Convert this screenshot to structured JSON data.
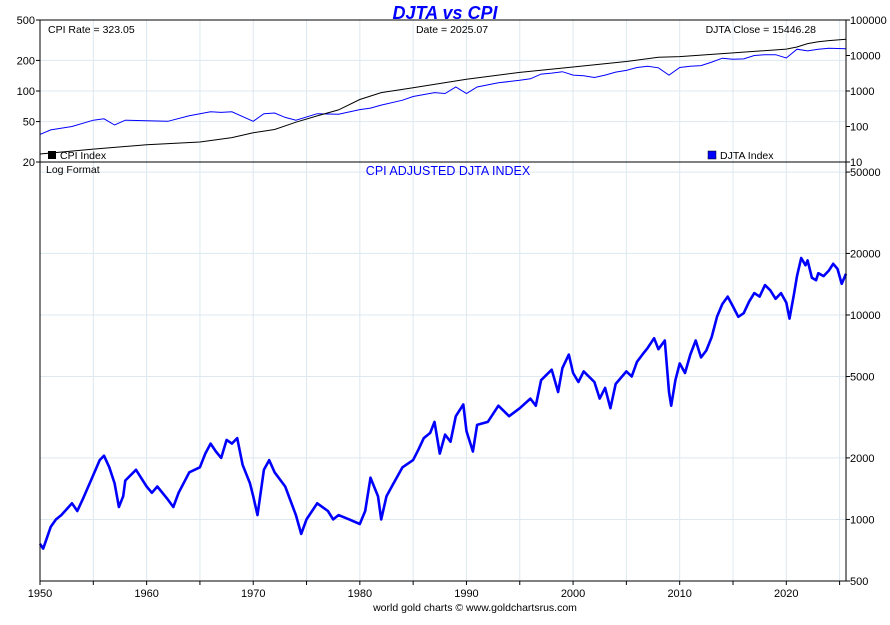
{
  "colors": {
    "accent": "#0000ff",
    "grid": "#dde8f0",
    "cpi_line": "#000000",
    "djta_line": "#0000ff",
    "frame": "#000000"
  },
  "chart_data": [
    {
      "panel": "top",
      "type": "line",
      "title": "DJTA vs CPI",
      "header_left": "CPI Rate = 323.05",
      "header_center": "Date = 2025.07",
      "header_right": "DJTA Close = 15446.28",
      "x_range": [
        1950,
        2025.6
      ],
      "left_axis": {
        "scale": "log",
        "ticks": [
          "20",
          "50",
          "100",
          "200",
          "500"
        ],
        "range": [
          20,
          500
        ]
      },
      "right_axis": {
        "scale": "log",
        "ticks": [
          "10",
          "100",
          "1000",
          "10000",
          "100000"
        ],
        "range": [
          10,
          100000
        ]
      },
      "legend_left": "CPI Index",
      "legend_right": "DJTA Index",
      "series": [
        {
          "name": "CPI Index",
          "axis": "left",
          "points": [
            [
              1950,
              24
            ],
            [
              1955,
              26.8
            ],
            [
              1960,
              29.6
            ],
            [
              1965,
              31.5
            ],
            [
              1968,
              34.8
            ],
            [
              1970,
              38.8
            ],
            [
              1972,
              41.8
            ],
            [
              1974,
              49.3
            ],
            [
              1976,
              56.9
            ],
            [
              1978,
              65.2
            ],
            [
              1980,
              82.4
            ],
            [
              1982,
              96.5
            ],
            [
              1985,
              107.6
            ],
            [
              1990,
              130.7
            ],
            [
              1995,
              152.4
            ],
            [
              2000,
              172.2
            ],
            [
              2005,
              195.3
            ],
            [
              2008,
              215.3
            ],
            [
              2010,
              218.1
            ],
            [
              2015,
              237
            ],
            [
              2020,
              258.8
            ],
            [
              2021,
              271
            ],
            [
              2022,
              292.7
            ],
            [
              2023,
              304.7
            ],
            [
              2024,
              313.7
            ],
            [
              2025.6,
              323.05
            ]
          ]
        },
        {
          "name": "DJTA Index",
          "axis": "right",
          "points": [
            [
              1950,
              60
            ],
            [
              1951,
              80
            ],
            [
              1953,
              100
            ],
            [
              1955,
              150
            ],
            [
              1956,
              165
            ],
            [
              1957,
              110
            ],
            [
              1958,
              150
            ],
            [
              1960,
              145
            ],
            [
              1962,
              140
            ],
            [
              1964,
              200
            ],
            [
              1966,
              260
            ],
            [
              1967,
              250
            ],
            [
              1968,
              260
            ],
            [
              1970,
              140
            ],
            [
              1971,
              230
            ],
            [
              1972,
              240
            ],
            [
              1973,
              180
            ],
            [
              1974,
              150
            ],
            [
              1976,
              230
            ],
            [
              1978,
              220
            ],
            [
              1980,
              300
            ],
            [
              1981,
              330
            ],
            [
              1982,
              400
            ],
            [
              1984,
              550
            ],
            [
              1985,
              700
            ],
            [
              1987,
              900
            ],
            [
              1988,
              850
            ],
            [
              1989,
              1300
            ],
            [
              1990,
              850
            ],
            [
              1991,
              1300
            ],
            [
              1993,
              1700
            ],
            [
              1995,
              2000
            ],
            [
              1996,
              2200
            ],
            [
              1997,
              3000
            ],
            [
              1998,
              3200
            ],
            [
              1999,
              3500
            ],
            [
              2000,
              2800
            ],
            [
              2001,
              2700
            ],
            [
              2002,
              2400
            ],
            [
              2003,
              2800
            ],
            [
              2004,
              3400
            ],
            [
              2005,
              3800
            ],
            [
              2006,
              4600
            ],
            [
              2007,
              5000
            ],
            [
              2008,
              4500
            ],
            [
              2009,
              2800
            ],
            [
              2010,
              4600
            ],
            [
              2011,
              5000
            ],
            [
              2012,
              5200
            ],
            [
              2013,
              6500
            ],
            [
              2014,
              8400
            ],
            [
              2015,
              7800
            ],
            [
              2016,
              8000
            ],
            [
              2017,
              10000
            ],
            [
              2018,
              10500
            ],
            [
              2019,
              10500
            ],
            [
              2020,
              8500
            ],
            [
              2021,
              15000
            ],
            [
              2022,
              13500
            ],
            [
              2023,
              15000
            ],
            [
              2024,
              16000
            ],
            [
              2025.6,
              15446.28
            ]
          ]
        }
      ]
    },
    {
      "panel": "bottom",
      "type": "line",
      "title": "CPI ADJUSTED DJTA INDEX",
      "note": "Log Format",
      "x_range": [
        1950,
        2025.6
      ],
      "x_ticks": [
        "1950",
        "1960",
        "1970",
        "1980",
        "1990",
        "2000",
        "2010",
        "2020"
      ],
      "right_axis": {
        "scale": "log",
        "ticks": [
          "500",
          "1000",
          "2000",
          "5000",
          "10000",
          "20000",
          "50000"
        ],
        "range": [
          500,
          56000
        ]
      },
      "source": "world gold charts © www.goldchartsrus.com",
      "series": [
        {
          "name": "CPI Adjusted DJTA",
          "points": [
            [
              1950,
              760
            ],
            [
              1950.3,
              720
            ],
            [
              1951,
              920
            ],
            [
              1951.5,
              1000
            ],
            [
              1952,
              1050
            ],
            [
              1953,
              1200
            ],
            [
              1953.5,
              1100
            ],
            [
              1954,
              1250
            ],
            [
              1955,
              1650
            ],
            [
              1955.6,
              1950
            ],
            [
              1956,
              2050
            ],
            [
              1956.5,
              1800
            ],
            [
              1957,
              1500
            ],
            [
              1957.4,
              1150
            ],
            [
              1957.8,
              1300
            ],
            [
              1958,
              1550
            ],
            [
              1959,
              1750
            ],
            [
              1960,
              1450
            ],
            [
              1960.5,
              1350
            ],
            [
              1961,
              1450
            ],
            [
              1962,
              1250
            ],
            [
              1962.5,
              1150
            ],
            [
              1963,
              1350
            ],
            [
              1964,
              1700
            ],
            [
              1965,
              1800
            ],
            [
              1965.5,
              2100
            ],
            [
              1966,
              2350
            ],
            [
              1966.5,
              2150
            ],
            [
              1967,
              2000
            ],
            [
              1967.5,
              2450
            ],
            [
              1968,
              2350
            ],
            [
              1968.5,
              2500
            ],
            [
              1969,
              1850
            ],
            [
              1969.7,
              1500
            ],
            [
              1970,
              1300
            ],
            [
              1970.4,
              1050
            ],
            [
              1971,
              1750
            ],
            [
              1971.5,
              1950
            ],
            [
              1972,
              1700
            ],
            [
              1973,
              1450
            ],
            [
              1974,
              1050
            ],
            [
              1974.5,
              850
            ],
            [
              1975,
              1000
            ],
            [
              1976,
              1200
            ],
            [
              1977,
              1100
            ],
            [
              1977.5,
              1000
            ],
            [
              1978,
              1050
            ],
            [
              1979,
              1000
            ],
            [
              1980,
              950
            ],
            [
              1980.5,
              1100
            ],
            [
              1981,
              1600
            ],
            [
              1981.7,
              1300
            ],
            [
              1982,
              1000
            ],
            [
              1982.5,
              1300
            ],
            [
              1983,
              1450
            ],
            [
              1984,
              1800
            ],
            [
              1985,
              1950
            ],
            [
              1985.5,
              2200
            ],
            [
              1986,
              2500
            ],
            [
              1986.6,
              2650
            ],
            [
              1987,
              3000
            ],
            [
              1987.5,
              2100
            ],
            [
              1988,
              2600
            ],
            [
              1988.5,
              2400
            ],
            [
              1989,
              3200
            ],
            [
              1989.7,
              3650
            ],
            [
              1990,
              2700
            ],
            [
              1990.6,
              2150
            ],
            [
              1991,
              2900
            ],
            [
              1992,
              3000
            ],
            [
              1993,
              3600
            ],
            [
              1994,
              3200
            ],
            [
              1995,
              3500
            ],
            [
              1996,
              3900
            ],
            [
              1996.5,
              3600
            ],
            [
              1997,
              4800
            ],
            [
              1998,
              5400
            ],
            [
              1998.6,
              4200
            ],
            [
              1999,
              5500
            ],
            [
              1999.6,
              6400
            ],
            [
              2000,
              5200
            ],
            [
              2000.5,
              4700
            ],
            [
              2001,
              5300
            ],
            [
              2002,
              4700
            ],
            [
              2002.5,
              3900
            ],
            [
              2003,
              4400
            ],
            [
              2003.5,
              3500
            ],
            [
              2004,
              4600
            ],
            [
              2005,
              5300
            ],
            [
              2005.5,
              5000
            ],
            [
              2006,
              5900
            ],
            [
              2006.5,
              6400
            ],
            [
              2007,
              6900
            ],
            [
              2007.6,
              7700
            ],
            [
              2008,
              6800
            ],
            [
              2008.6,
              7500
            ],
            [
              2009,
              4200
            ],
            [
              2009.2,
              3600
            ],
            [
              2009.6,
              4800
            ],
            [
              2010,
              5800
            ],
            [
              2010.5,
              5200
            ],
            [
              2011,
              6400
            ],
            [
              2011.5,
              7500
            ],
            [
              2012,
              6200
            ],
            [
              2012.5,
              6700
            ],
            [
              2013,
              7800
            ],
            [
              2013.5,
              9800
            ],
            [
              2014,
              11300
            ],
            [
              2014.5,
              12300
            ],
            [
              2015,
              11000
            ],
            [
              2015.5,
              9800
            ],
            [
              2016,
              10200
            ],
            [
              2016.5,
              11600
            ],
            [
              2017,
              12800
            ],
            [
              2017.5,
              12300
            ],
            [
              2018,
              14000
            ],
            [
              2018.5,
              13200
            ],
            [
              2019,
              12000
            ],
            [
              2019.5,
              12800
            ],
            [
              2020,
              11500
            ],
            [
              2020.3,
              9600
            ],
            [
              2020.7,
              12500
            ],
            [
              2021,
              15500
            ],
            [
              2021.4,
              19000
            ],
            [
              2021.8,
              17500
            ],
            [
              2022,
              18500
            ],
            [
              2022.4,
              15200
            ],
            [
              2022.8,
              14800
            ],
            [
              2023,
              16000
            ],
            [
              2023.5,
              15500
            ],
            [
              2024,
              16500
            ],
            [
              2024.4,
              17800
            ],
            [
              2024.8,
              16800
            ],
            [
              2025.2,
              14200
            ],
            [
              2025.6,
              15900
            ]
          ]
        }
      ]
    }
  ]
}
